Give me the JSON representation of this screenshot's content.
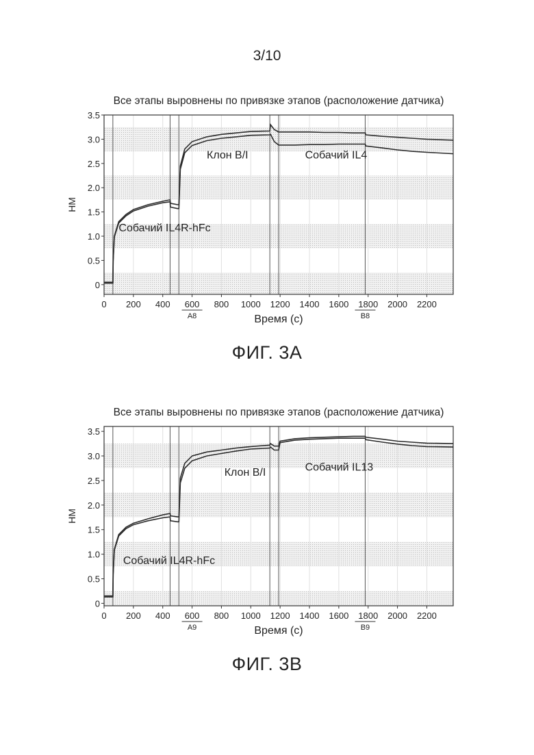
{
  "page_number": "3/10",
  "chart_data": [
    {
      "type": "line",
      "figure_caption": "ФИГ. 3А",
      "title": "Все этапы выровнены по привязке этапов (расположение датчика)",
      "xlabel": "Время (с)",
      "ylabel": "НМ",
      "xlim": [
        0,
        2380
      ],
      "ylim": [
        -0.2,
        3.5
      ],
      "xticks": [
        0,
        200,
        400,
        600,
        800,
        1000,
        1200,
        1400,
        1600,
        1800,
        2000,
        2200
      ],
      "yticks": [
        0,
        0.5,
        1.0,
        1.5,
        2.0,
        2.5,
        3.0,
        3.5
      ],
      "ytick_labels": [
        "0",
        "0.5",
        "1.0",
        "1.5",
        "2.0",
        "2.5",
        "3.0",
        "3.5"
      ],
      "step_lines_x": [
        60,
        450,
        510,
        1130,
        1190,
        1780
      ],
      "step_labels": [
        {
          "text": "Собачий IL4R-hFc",
          "x": 100,
          "y": 1.1
        },
        {
          "text": "Клон В/І",
          "x": 700,
          "y": 2.6
        },
        {
          "text": "Собачий IL4",
          "x": 1370,
          "y": 2.6
        }
      ],
      "axis_markers": [
        {
          "text": "А8",
          "x": 600
        },
        {
          "text": "В8",
          "x": 1780
        }
      ],
      "series": [
        {
          "x": [
            0,
            60,
            62,
            70,
            100,
            150,
            200,
            300,
            400,
            450,
            452,
            500,
            510,
            520,
            550,
            600,
            700,
            800,
            900,
            1000,
            1130,
            1135,
            1160,
            1190,
            1200,
            1300,
            1400,
            1500,
            1600,
            1700,
            1780,
            1785,
            1900,
            2000,
            2100,
            2200,
            2380
          ],
          "y": [
            0.05,
            0.05,
            0.5,
            1.0,
            1.3,
            1.45,
            1.55,
            1.65,
            1.72,
            1.75,
            1.68,
            1.65,
            1.65,
            2.45,
            2.8,
            2.95,
            3.05,
            3.1,
            3.13,
            3.16,
            3.17,
            3.3,
            3.2,
            3.15,
            3.15,
            3.15,
            3.15,
            3.14,
            3.14,
            3.13,
            3.13,
            3.09,
            3.06,
            3.04,
            3.02,
            3.0,
            2.98
          ]
        },
        {
          "x": [
            0,
            60,
            62,
            70,
            100,
            150,
            200,
            300,
            400,
            450,
            452,
            500,
            510,
            520,
            550,
            600,
            700,
            800,
            900,
            1000,
            1130,
            1135,
            1160,
            1190,
            1200,
            1300,
            1400,
            1500,
            1600,
            1700,
            1780,
            1785,
            1900,
            2000,
            2100,
            2200,
            2380
          ],
          "y": [
            0.03,
            0.03,
            0.48,
            0.98,
            1.27,
            1.42,
            1.52,
            1.62,
            1.69,
            1.71,
            1.6,
            1.57,
            1.57,
            2.38,
            2.72,
            2.87,
            2.97,
            3.02,
            3.05,
            3.08,
            3.09,
            3.1,
            2.95,
            2.88,
            2.88,
            2.88,
            2.89,
            2.89,
            2.9,
            2.9,
            2.9,
            2.86,
            2.82,
            2.78,
            2.75,
            2.73,
            2.7
          ]
        }
      ]
    },
    {
      "type": "line",
      "figure_caption": "ФИГ. 3В",
      "title": "Все этапы выровнены по привязке этапов (расположение датчика)",
      "xlabel": "Время (с)",
      "ylabel": "НМ",
      "xlim": [
        0,
        2380
      ],
      "ylim": [
        -0.05,
        3.6
      ],
      "xticks": [
        0,
        200,
        400,
        600,
        800,
        1000,
        1200,
        1400,
        1600,
        1800,
        2000,
        2200
      ],
      "yticks": [
        0,
        0.5,
        1.0,
        1.5,
        2.0,
        2.5,
        3.0,
        3.5
      ],
      "ytick_labels": [
        "0",
        "0.5",
        "1.0",
        "1.5",
        "2.0",
        "2.5",
        "3.0",
        "3.5"
      ],
      "step_lines_x": [
        60,
        450,
        510,
        1130,
        1190,
        1780
      ],
      "step_labels": [
        {
          "text": "Собачий IL4R-hFc",
          "x": 130,
          "y": 0.8
        },
        {
          "text": "Клон В/І",
          "x": 820,
          "y": 2.6
        },
        {
          "text": "Собачий IL13",
          "x": 1370,
          "y": 2.7
        }
      ],
      "axis_markers": [
        {
          "text": "А9",
          "x": 600
        },
        {
          "text": "В9",
          "x": 1780
        }
      ],
      "series": [
        {
          "x": [
            0,
            60,
            62,
            70,
            100,
            150,
            200,
            300,
            400,
            450,
            452,
            500,
            510,
            520,
            550,
            600,
            700,
            800,
            900,
            1000,
            1130,
            1135,
            1160,
            1190,
            1200,
            1300,
            1400,
            1500,
            1600,
            1700,
            1780,
            1785,
            1900,
            2000,
            2100,
            2200,
            2380
          ],
          "y": [
            0.15,
            0.15,
            0.6,
            1.1,
            1.4,
            1.55,
            1.63,
            1.72,
            1.8,
            1.83,
            1.78,
            1.76,
            1.76,
            2.55,
            2.85,
            3.0,
            3.08,
            3.12,
            3.16,
            3.19,
            3.22,
            3.25,
            3.2,
            3.2,
            3.3,
            3.35,
            3.37,
            3.38,
            3.39,
            3.4,
            3.4,
            3.38,
            3.34,
            3.3,
            3.28,
            3.26,
            3.25
          ]
        },
        {
          "x": [
            0,
            60,
            62,
            70,
            100,
            150,
            200,
            300,
            400,
            450,
            452,
            500,
            510,
            520,
            550,
            600,
            700,
            800,
            900,
            1000,
            1130,
            1135,
            1160,
            1190,
            1200,
            1300,
            1400,
            1500,
            1600,
            1700,
            1780,
            1785,
            1900,
            2000,
            2100,
            2200,
            2380
          ],
          "y": [
            0.13,
            0.13,
            0.58,
            1.08,
            1.37,
            1.52,
            1.6,
            1.68,
            1.74,
            1.76,
            1.68,
            1.66,
            1.66,
            2.45,
            2.75,
            2.9,
            3.0,
            3.05,
            3.1,
            3.14,
            3.16,
            3.18,
            3.12,
            3.12,
            3.27,
            3.32,
            3.34,
            3.35,
            3.36,
            3.36,
            3.36,
            3.33,
            3.28,
            3.24,
            3.21,
            3.19,
            3.18
          ]
        }
      ]
    }
  ]
}
